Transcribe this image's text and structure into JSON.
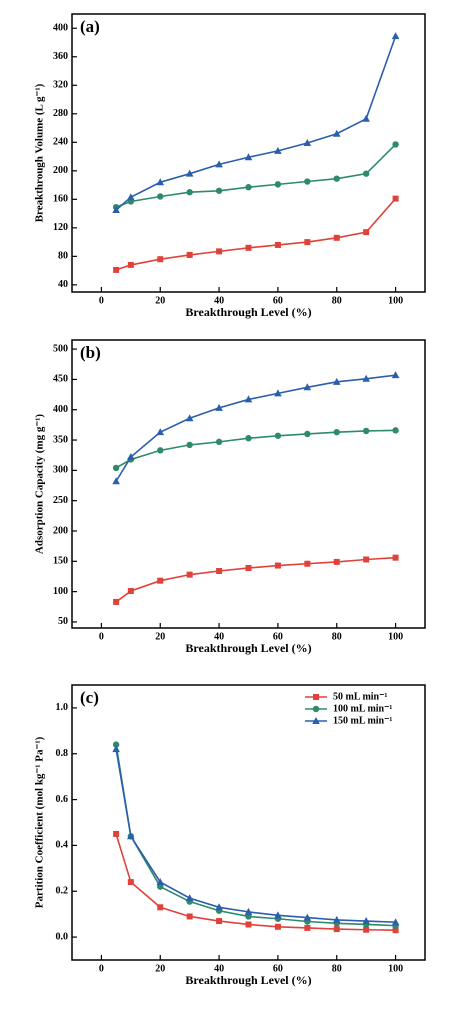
{
  "chart_data": [
    {
      "type": "line",
      "label": "(a)",
      "xlabel": "Breakthrough Level (%)",
      "ylabel": "Breakthrough Volume (L g⁻¹)",
      "x": [
        5,
        10,
        20,
        30,
        40,
        50,
        60,
        70,
        80,
        90,
        100
      ],
      "xlim": [
        -10,
        110
      ],
      "xticks": [
        0,
        20,
        40,
        60,
        80,
        100
      ],
      "ylim": [
        30,
        420
      ],
      "yticks": [
        40,
        80,
        120,
        160,
        200,
        240,
        280,
        320,
        360,
        400
      ],
      "series": [
        {
          "color": "#e0423a",
          "marker": "square",
          "values": [
            61,
            68,
            76,
            82,
            87,
            92,
            96,
            100,
            106,
            114,
            161
          ]
        },
        {
          "color": "#2e8b6a",
          "marker": "circle",
          "values": [
            149,
            157,
            164,
            170,
            172,
            177,
            181,
            185,
            189,
            196,
            237
          ]
        },
        {
          "color": "#2b5fad",
          "marker": "triangle",
          "values": [
            145,
            163,
            184,
            196,
            209,
            219,
            228,
            239,
            252,
            273,
            389
          ]
        }
      ]
    },
    {
      "type": "line",
      "label": "(b)",
      "xlabel": "Breakthrough Level (%)",
      "ylabel": "Adsorption Capacity (mg g⁻¹)",
      "x": [
        5,
        10,
        20,
        30,
        40,
        50,
        60,
        70,
        80,
        90,
        100
      ],
      "xlim": [
        -10,
        110
      ],
      "xticks": [
        0,
        20,
        40,
        60,
        80,
        100
      ],
      "ylim": [
        40,
        515
      ],
      "yticks": [
        50,
        100,
        150,
        200,
        250,
        300,
        350,
        400,
        450,
        500
      ],
      "series": [
        {
          "color": "#e0423a",
          "marker": "square",
          "values": [
            83,
            101,
            118,
            128,
            134,
            139,
            143,
            146,
            149,
            153,
            156
          ]
        },
        {
          "color": "#2e8b6a",
          "marker": "circle",
          "values": [
            304,
            318,
            333,
            342,
            347,
            353,
            357,
            360,
            363,
            365,
            366
          ]
        },
        {
          "color": "#2b5fad",
          "marker": "triangle",
          "values": [
            282,
            322,
            363,
            386,
            403,
            417,
            427,
            437,
            446,
            451,
            457
          ]
        }
      ]
    },
    {
      "type": "line",
      "label": "(c)",
      "xlabel": "Breakthrough Level (%)",
      "ylabel": "Partition Coefficient (mol kg⁻¹ Pa⁻¹)",
      "x": [
        5,
        10,
        20,
        30,
        40,
        50,
        60,
        70,
        80,
        90,
        100
      ],
      "xlim": [
        -10,
        110
      ],
      "xticks": [
        0,
        20,
        40,
        60,
        80,
        100
      ],
      "ylim": [
        -0.1,
        1.1
      ],
      "yticks": [
        {
          "value": 0,
          "label": "0.0"
        },
        0.2,
        0.4,
        0.6,
        0.8,
        {
          "value": 1,
          "label": "1.0"
        }
      ],
      "legend": "upper right",
      "series": [
        {
          "name": "50 mL min⁻¹",
          "color": "#e0423a",
          "marker": "square",
          "values": [
            0.45,
            0.24,
            0.13,
            0.09,
            0.07,
            0.055,
            0.045,
            0.04,
            0.035,
            0.032,
            0.03
          ]
        },
        {
          "name": "100 mL min⁻¹",
          "color": "#2e8b6a",
          "marker": "circle",
          "values": [
            0.84,
            0.44,
            0.22,
            0.155,
            0.115,
            0.09,
            0.08,
            0.068,
            0.06,
            0.055,
            0.05
          ]
        },
        {
          "name": "150 mL min⁻¹",
          "color": "#2b5fad",
          "marker": "triangle",
          "values": [
            0.82,
            0.44,
            0.24,
            0.17,
            0.13,
            0.11,
            0.095,
            0.085,
            0.075,
            0.07,
            0.065
          ]
        }
      ]
    }
  ]
}
